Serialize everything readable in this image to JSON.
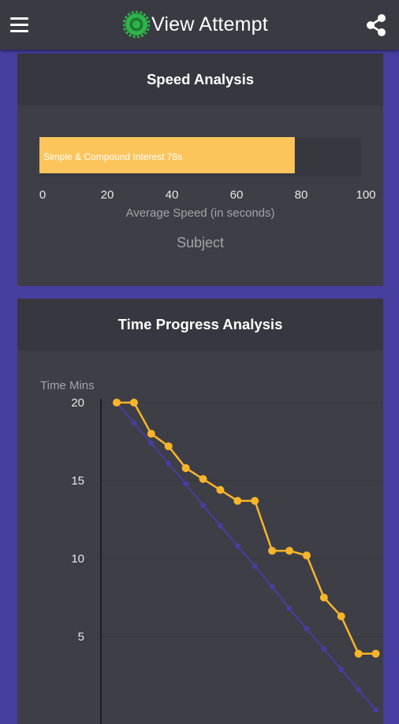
{
  "app_bar": {
    "title": "View Attempt",
    "menu_icon": "hamburger-menu-icon",
    "logo_icon": "app-logo-icon",
    "share_icon": "share-icon"
  },
  "colors": {
    "app_bar": "#3a3a42",
    "page_background": "#463f9f",
    "card": "#3e3e46",
    "card_header": "#37373f",
    "bar_fill": "#fcc55c",
    "actual_line": "#f9b52a",
    "ideal_line": "#463f9f"
  },
  "speed_card": {
    "title": "Speed Analysis"
  },
  "time_card": {
    "title": "Time Progress Analysis"
  },
  "chart_data": [
    {
      "type": "bar",
      "orientation": "horizontal",
      "categories": [
        "Simple & Compound Interest"
      ],
      "values": [
        78
      ],
      "data_labels": [
        "Simple & Compound Interest 78s"
      ],
      "xlabel": "Average Speed (in seconds)",
      "ylabel": "Subject",
      "xlim": [
        0,
        100
      ],
      "x_ticks": [
        "0",
        "20",
        "40",
        "60",
        "80",
        "100"
      ]
    },
    {
      "type": "line",
      "ylabel": "Time Mins",
      "ylim": [
        0,
        20
      ],
      "y_ticks": [
        "5",
        "10",
        "15",
        "20"
      ],
      "grid": true,
      "series": [
        {
          "color": "#463f9f",
          "x": [
            1,
            2,
            3,
            4,
            5,
            6,
            7,
            8,
            9,
            10,
            11,
            12,
            13,
            14,
            15,
            16
          ],
          "y": [
            20.0,
            18.7,
            17.4,
            16.1,
            14.8,
            13.4,
            12.1,
            10.8,
            9.5,
            8.2,
            6.8,
            5.5,
            4.2,
            2.9,
            1.6,
            0.3
          ]
        },
        {
          "color": "#f9b52a",
          "x": [
            1,
            2,
            3,
            4,
            5,
            6,
            7,
            8,
            9,
            10,
            11,
            12,
            13,
            14,
            15,
            16
          ],
          "y": [
            20.0,
            20.0,
            18.0,
            17.2,
            15.8,
            15.1,
            14.4,
            13.7,
            13.7,
            10.5,
            10.5,
            10.2,
            7.5,
            6.3,
            3.9,
            3.9
          ]
        }
      ]
    }
  ]
}
